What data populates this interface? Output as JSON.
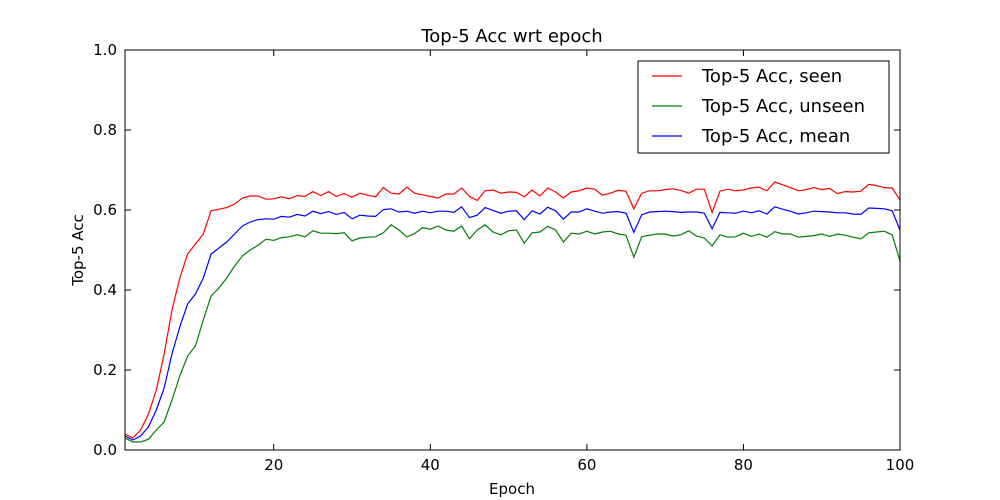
{
  "chart_data": {
    "type": "line",
    "title": "Top-5 Acc wrt epoch",
    "xlabel": "Epoch",
    "ylabel": "Top-5 Acc",
    "xlim": [
      1,
      100
    ],
    "ylim": [
      0.0,
      1.0
    ],
    "xticks": [
      20,
      40,
      60,
      80,
      100
    ],
    "yticks": [
      0.0,
      0.2,
      0.4,
      0.6,
      0.8,
      1.0
    ],
    "ytick_labels": [
      "0.0",
      "0.2",
      "0.4",
      "0.6",
      "0.8",
      "1.0"
    ],
    "grid": false,
    "legend_position": "top-right",
    "x": [
      1,
      2,
      3,
      4,
      5,
      6,
      7,
      8,
      9,
      10,
      11,
      12,
      13,
      14,
      15,
      16,
      17,
      18,
      19,
      20,
      21,
      22,
      23,
      24,
      25,
      26,
      27,
      28,
      29,
      30,
      31,
      32,
      33,
      34,
      35,
      36,
      37,
      38,
      39,
      40,
      41,
      42,
      43,
      44,
      45,
      46,
      47,
      48,
      49,
      50,
      51,
      52,
      53,
      54,
      55,
      56,
      57,
      58,
      59,
      60,
      61,
      62,
      63,
      64,
      65,
      66,
      67,
      68,
      69,
      70,
      71,
      72,
      73,
      74,
      75,
      76,
      77,
      78,
      79,
      80,
      81,
      82,
      83,
      84,
      85,
      86,
      87,
      88,
      89,
      90,
      91,
      92,
      93,
      94,
      95,
      96,
      97,
      98,
      99,
      100
    ],
    "series": [
      {
        "name": "Top-5 Acc, seen",
        "color": "#ff0000",
        "values": [
          0.04,
          0.03,
          0.05,
          0.09,
          0.15,
          0.24,
          0.35,
          0.43,
          0.49,
          0.515,
          0.54,
          0.598,
          0.602,
          0.606,
          0.615,
          0.63,
          0.635,
          0.635,
          0.627,
          0.628,
          0.633,
          0.628,
          0.636,
          0.634,
          0.646,
          0.636,
          0.646,
          0.634,
          0.641,
          0.632,
          0.642,
          0.637,
          0.633,
          0.656,
          0.642,
          0.64,
          0.657,
          0.642,
          0.638,
          0.634,
          0.63,
          0.64,
          0.64,
          0.655,
          0.634,
          0.624,
          0.648,
          0.65,
          0.642,
          0.645,
          0.644,
          0.633,
          0.65,
          0.635,
          0.655,
          0.645,
          0.63,
          0.645,
          0.648,
          0.655,
          0.652,
          0.637,
          0.642,
          0.649,
          0.647,
          0.603,
          0.642,
          0.648,
          0.648,
          0.651,
          0.653,
          0.649,
          0.642,
          0.652,
          0.652,
          0.594,
          0.647,
          0.652,
          0.648,
          0.65,
          0.655,
          0.657,
          0.648,
          0.67,
          0.663,
          0.656,
          0.648,
          0.651,
          0.656,
          0.651,
          0.654,
          0.641,
          0.646,
          0.645,
          0.647,
          0.664,
          0.661,
          0.656,
          0.655,
          0.625
        ]
      },
      {
        "name": "Top-5 Acc, unseen",
        "color": "#008000",
        "values": [
          0.03,
          0.02,
          0.02,
          0.027,
          0.05,
          0.07,
          0.125,
          0.185,
          0.235,
          0.26,
          0.325,
          0.385,
          0.405,
          0.43,
          0.46,
          0.485,
          0.5,
          0.512,
          0.527,
          0.524,
          0.531,
          0.533,
          0.538,
          0.533,
          0.548,
          0.542,
          0.542,
          0.541,
          0.543,
          0.523,
          0.53,
          0.532,
          0.533,
          0.543,
          0.563,
          0.55,
          0.533,
          0.541,
          0.556,
          0.552,
          0.56,
          0.55,
          0.547,
          0.56,
          0.528,
          0.55,
          0.563,
          0.545,
          0.538,
          0.548,
          0.55,
          0.517,
          0.543,
          0.545,
          0.559,
          0.55,
          0.52,
          0.542,
          0.54,
          0.547,
          0.54,
          0.545,
          0.547,
          0.54,
          0.537,
          0.482,
          0.533,
          0.537,
          0.54,
          0.54,
          0.535,
          0.538,
          0.548,
          0.535,
          0.53,
          0.51,
          0.538,
          0.532,
          0.533,
          0.542,
          0.534,
          0.54,
          0.532,
          0.546,
          0.54,
          0.54,
          0.532,
          0.534,
          0.536,
          0.54,
          0.534,
          0.54,
          0.537,
          0.532,
          0.528,
          0.543,
          0.545,
          0.547,
          0.538,
          0.473
        ]
      },
      {
        "name": "Top-5 Acc, mean",
        "color": "#0000ff",
        "values": [
          0.035,
          0.025,
          0.035,
          0.058,
          0.1,
          0.155,
          0.24,
          0.308,
          0.365,
          0.39,
          0.43,
          0.49,
          0.505,
          0.52,
          0.54,
          0.56,
          0.57,
          0.576,
          0.578,
          0.577,
          0.584,
          0.582,
          0.589,
          0.585,
          0.597,
          0.591,
          0.596,
          0.589,
          0.594,
          0.578,
          0.587,
          0.585,
          0.584,
          0.601,
          0.603,
          0.595,
          0.597,
          0.592,
          0.597,
          0.593,
          0.597,
          0.597,
          0.594,
          0.608,
          0.581,
          0.587,
          0.606,
          0.599,
          0.592,
          0.597,
          0.598,
          0.576,
          0.598,
          0.59,
          0.607,
          0.598,
          0.577,
          0.595,
          0.595,
          0.603,
          0.597,
          0.592,
          0.595,
          0.596,
          0.592,
          0.544,
          0.588,
          0.595,
          0.596,
          0.597,
          0.596,
          0.594,
          0.595,
          0.595,
          0.592,
          0.553,
          0.594,
          0.593,
          0.592,
          0.597,
          0.593,
          0.598,
          0.59,
          0.608,
          0.602,
          0.597,
          0.59,
          0.593,
          0.597,
          0.596,
          0.595,
          0.593,
          0.593,
          0.59,
          0.589,
          0.605,
          0.604,
          0.603,
          0.598,
          0.55
        ]
      }
    ]
  }
}
